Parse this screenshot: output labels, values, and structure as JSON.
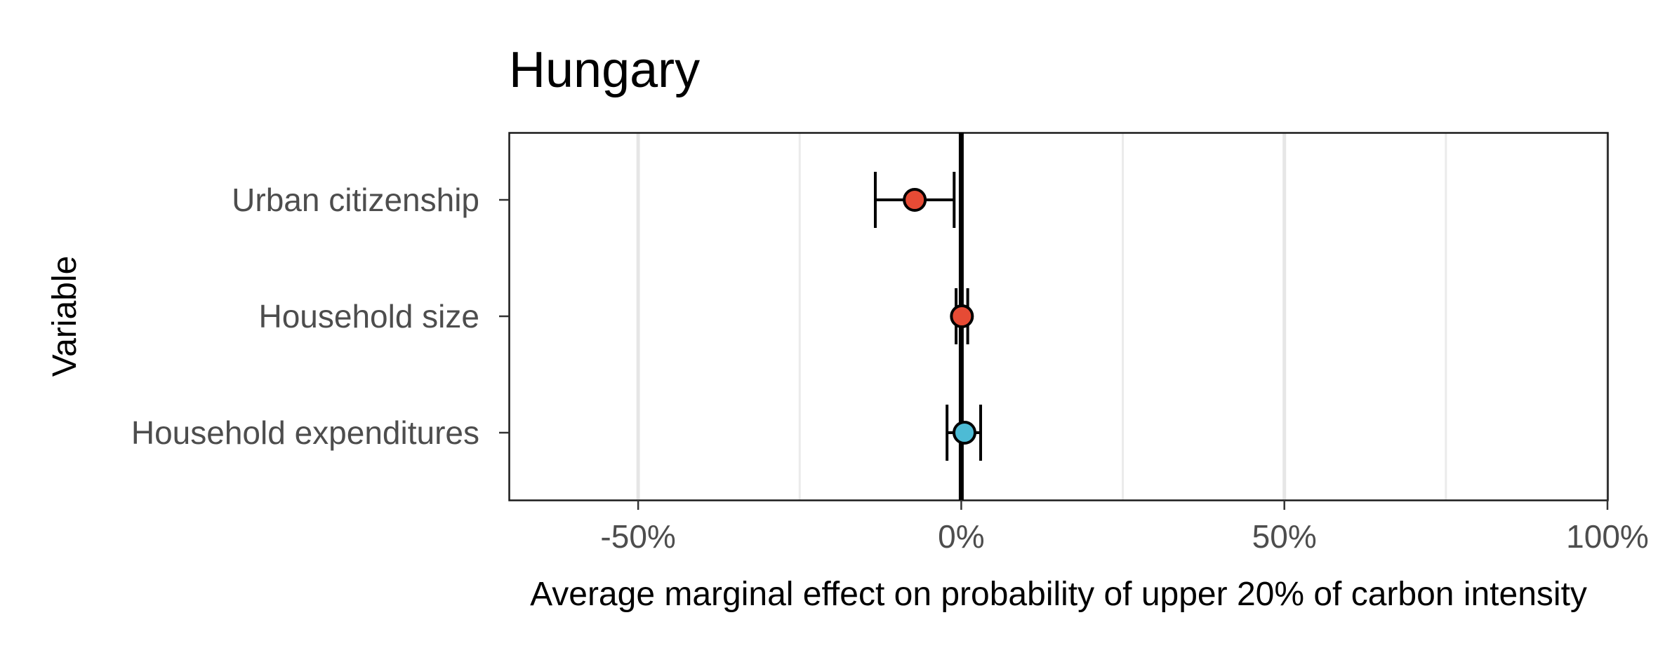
{
  "chart_data": {
    "type": "scatter",
    "title": "Hungary",
    "xlabel": "Average marginal effect on probability of upper 20% of carbon intensity",
    "ylabel": "Variable",
    "xlim": [
      -0.7,
      1.0
    ],
    "x_ticks": [
      -0.5,
      0,
      0.5,
      1.0
    ],
    "x_tick_labels": [
      "-50%",
      "0%",
      "50%",
      "100%"
    ],
    "x_minor_grid": [
      -0.25,
      0.25,
      0.75
    ],
    "grid": true,
    "reference_line": 0,
    "categories": [
      "Urban citizenship",
      "Household size",
      "Household expenditures"
    ],
    "points": [
      {
        "variable": "Urban citizenship",
        "estimate": -0.072,
        "ci_low": -0.133,
        "ci_high": -0.011,
        "color": "#e64b35"
      },
      {
        "variable": "Household size",
        "estimate": 0.001,
        "ci_low": -0.008,
        "ci_high": 0.01,
        "color": "#e64b35"
      },
      {
        "variable": "Household expenditures",
        "estimate": 0.005,
        "ci_low": -0.022,
        "ci_high": 0.03,
        "color": "#4dbbd5"
      }
    ]
  }
}
